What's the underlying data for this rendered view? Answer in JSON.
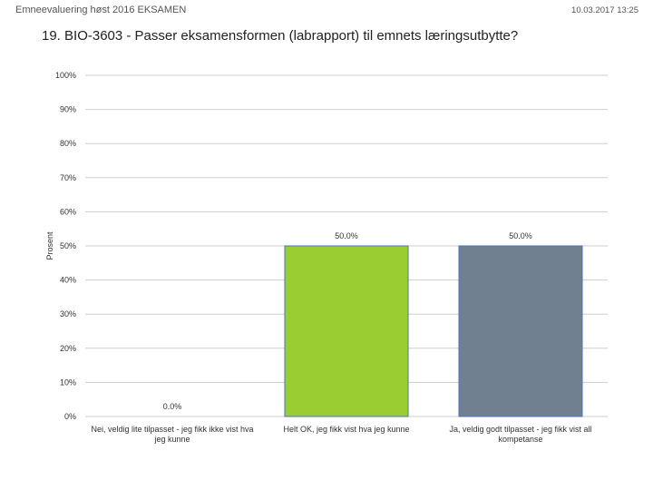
{
  "header": {
    "left": "Emneevaluering høst 2016 EKSAMEN",
    "right": "10.03.2017 13:25"
  },
  "chart_data": {
    "type": "bar",
    "title": "19. BIO-3603 - Passer eksamensformen (labrapport) til emnets læringsutbytte?",
    "ylabel": "Prosent",
    "xlabel": "",
    "ylim": [
      0,
      100
    ],
    "yticks": [
      0,
      10,
      20,
      30,
      40,
      50,
      60,
      70,
      80,
      90,
      100
    ],
    "ytick_labels": [
      "0%",
      "10%",
      "20%",
      "30%",
      "40%",
      "50%",
      "60%",
      "70%",
      "80%",
      "90%",
      "100%"
    ],
    "grid": true,
    "categories": [
      "Nei, veldig lite tilpasset - jeg fikk ikke vist hva jeg kunne",
      "Helt OK, jeg fikk vist hva jeg kunne",
      "Ja, veldig godt tilpasset - jeg fikk vist all kompetanse"
    ],
    "values": [
      0,
      50,
      50
    ],
    "data_labels": [
      "0.0%",
      "50.0%",
      "50.0%"
    ],
    "colors": [
      "#4472c4",
      "#9acd32",
      "#708090"
    ],
    "border_colors": [
      "#4472c4",
      "#4a72c4",
      "#4a72c4"
    ]
  }
}
